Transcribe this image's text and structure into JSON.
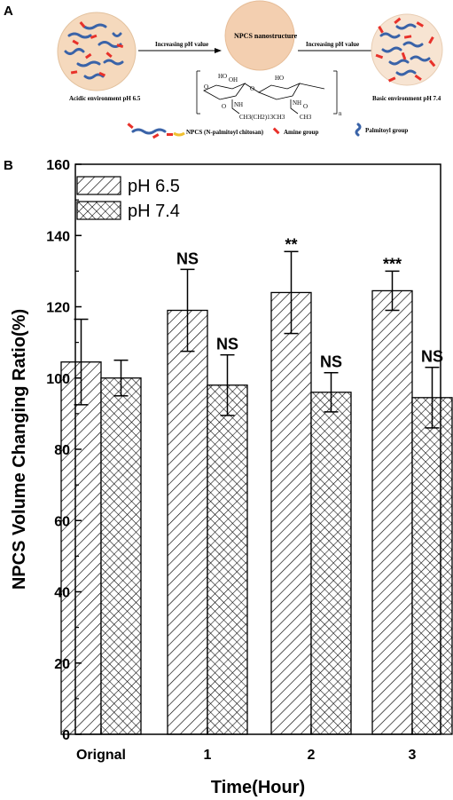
{
  "panel_a": {
    "label": "A",
    "left_caption": "Acidic environment pH 6.5",
    "arrow_left_label": "Increasing pH value",
    "center_label": "NPCS nanostructure",
    "arrow_right_label": "Increasing pH value",
    "right_caption": "Basic environment pH 7.4",
    "legend_npcs": "NPCS (N-palmitoyl chitosan)",
    "legend_amine": "Amine group",
    "legend_palmitoyl": "Palmitoyl group",
    "chem_labels": [
      "HO",
      "OH",
      "O",
      "O",
      "HO",
      "NH",
      "NH",
      "O",
      "O",
      "CH3(CH2)13CH3",
      "CH3",
      "n"
    ],
    "colors": {
      "amine": "#e8312a",
      "palmitoyl": "#3a63a8",
      "circle_fill": "#f5d9bd",
      "center_fill": "#f3cfb0"
    }
  },
  "panel_b": {
    "label": "B"
  },
  "chart_data": {
    "type": "bar",
    "categories": [
      "Orignal",
      "1",
      "2",
      "3"
    ],
    "series": [
      {
        "name": "pH 6.5",
        "pattern": "diagonal-hatch",
        "values": [
          104.5,
          119,
          124,
          124.5
        ],
        "errors": [
          12,
          11.5,
          11.5,
          5.5
        ]
      },
      {
        "name": "pH 7.4",
        "pattern": "cross-hatch",
        "values": [
          100,
          98,
          96,
          94.5
        ],
        "errors": [
          5,
          8.5,
          5.5,
          8.5
        ]
      }
    ],
    "annotations": [
      {
        "category": "1",
        "series": "pH 6.5",
        "text": "NS"
      },
      {
        "category": "1",
        "series": "pH 7.4",
        "text": "NS"
      },
      {
        "category": "2",
        "series": "pH 6.5",
        "text": "**"
      },
      {
        "category": "2",
        "series": "pH 7.4",
        "text": "NS"
      },
      {
        "category": "3",
        "series": "pH 6.5",
        "text": "***"
      },
      {
        "category": "3",
        "series": "pH 7.4",
        "text": "NS"
      }
    ],
    "xlabel": "Time(Hour)",
    "ylabel": "NPCS Volume Changing Ratio(%)",
    "ylim": [
      0,
      160
    ],
    "yticks": [
      0,
      20,
      40,
      60,
      80,
      100,
      120,
      140,
      160
    ],
    "grid": false,
    "legend_position": "top-left"
  }
}
